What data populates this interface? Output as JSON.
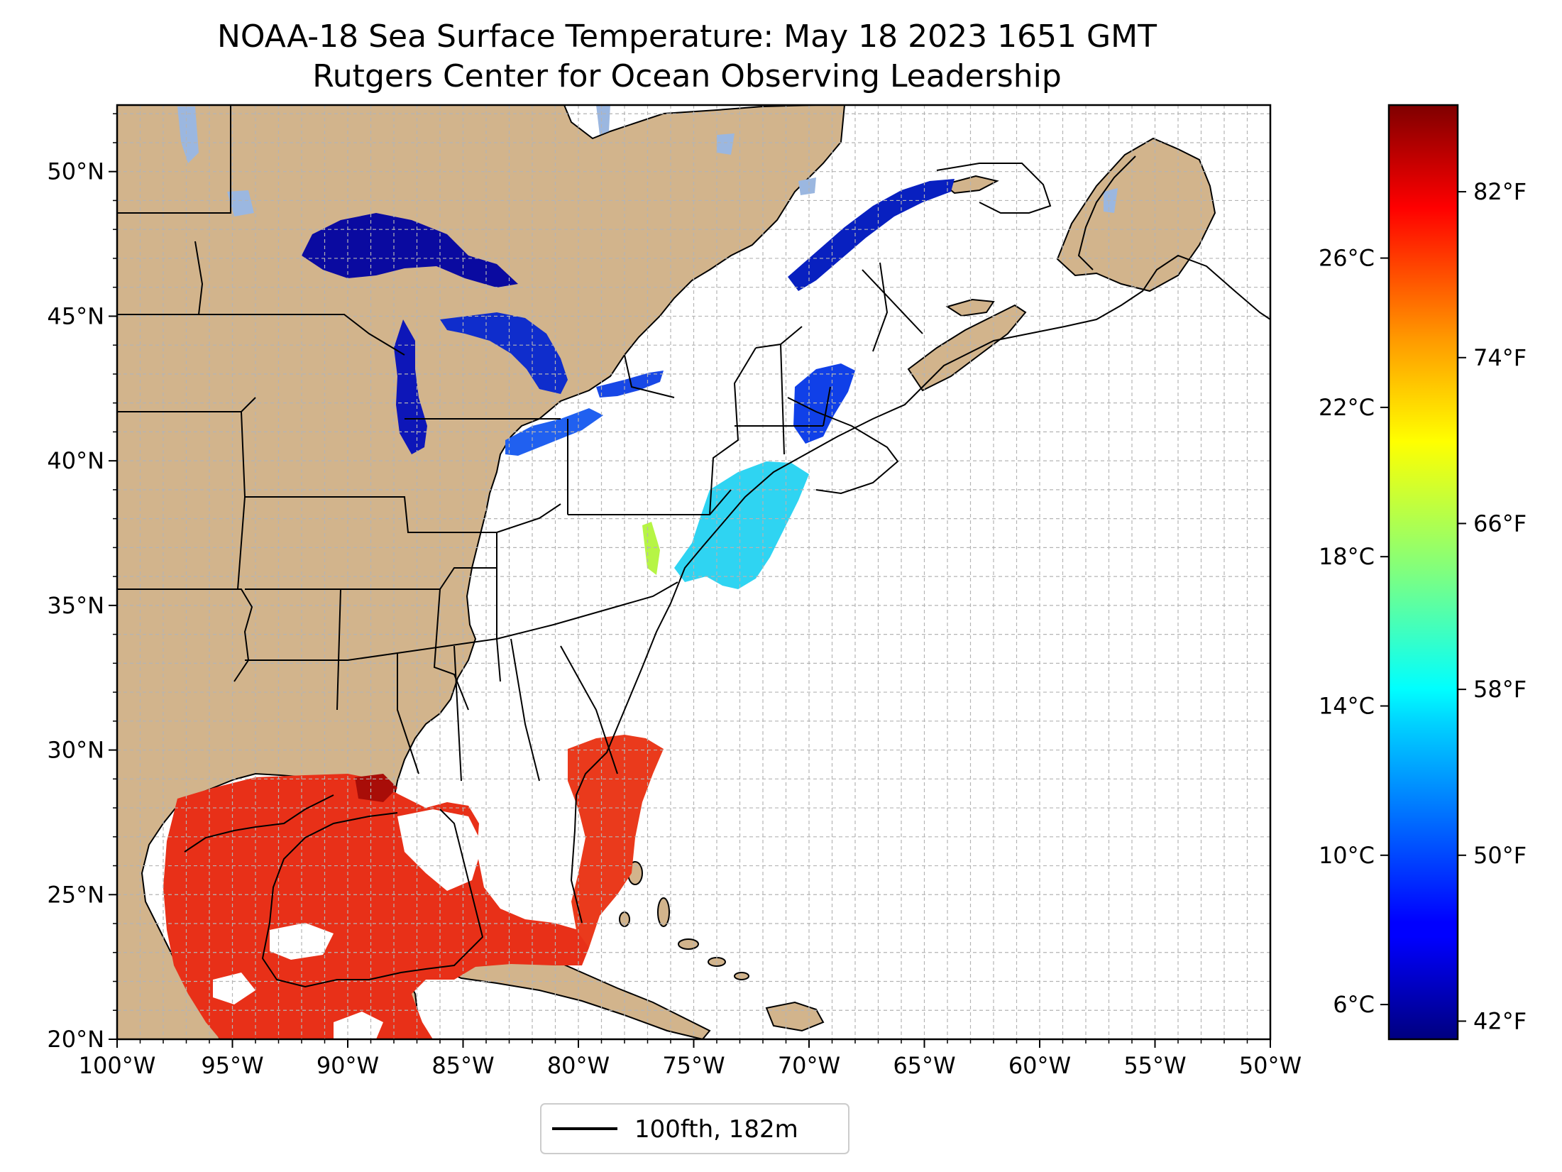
{
  "title": {
    "line1": "NOAA-18 Sea Surface Temperature: May 18 2023 1651 GMT",
    "line2": "Rutgers Center for Ocean Observing Leadership"
  },
  "map": {
    "lon_range": [
      -100,
      -50
    ],
    "lat_range": [
      20,
      52.3
    ],
    "lon_ticks": [
      "100°W",
      "95°W",
      "90°W",
      "85°W",
      "80°W",
      "75°W",
      "70°W",
      "65°W",
      "60°W",
      "55°W",
      "50°W"
    ],
    "lat_ticks": [
      "20°N",
      "25°N",
      "30°N",
      "35°N",
      "40°N",
      "45°N",
      "50°N"
    ],
    "grid": "dashed, 1° spacing",
    "land_color": "#d2b48c",
    "lake_color": "#9bb7e0",
    "no_data_color": "#ffffff"
  },
  "colorbar": {
    "colormap": "jet",
    "celsius_ticks": [
      "6°C",
      "10°C",
      "14°C",
      "18°C",
      "22°C",
      "26°C"
    ],
    "fahrenheit_ticks": [
      "42°F",
      "50°F",
      "58°F",
      "66°F",
      "74°F",
      "82°F"
    ]
  },
  "legend": {
    "label": "100fth, 182m"
  }
}
